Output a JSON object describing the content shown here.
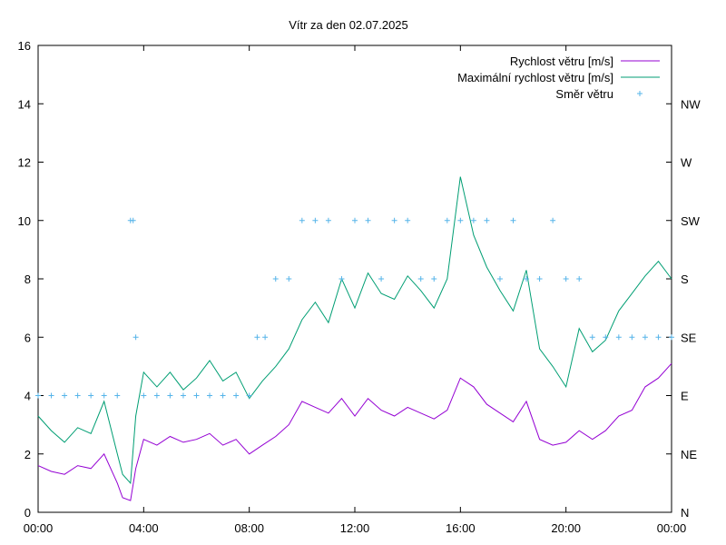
{
  "chart_data": {
    "type": "line",
    "title": "Vítr za den 02.07.2025",
    "xlabel": "",
    "ylabel": "",
    "xlim": [
      0,
      24
    ],
    "ylim": [
      0,
      16
    ],
    "x_ticks": [
      0,
      4,
      8,
      12,
      16,
      20,
      24
    ],
    "x_tick_labels": [
      "00:00",
      "04:00",
      "08:00",
      "12:00",
      "16:00",
      "20:00",
      "00:00"
    ],
    "y_ticks": [
      0,
      2,
      4,
      6,
      8,
      10,
      12,
      14,
      16
    ],
    "y_tick_labels": [
      "0",
      "2",
      "4",
      "6",
      "8",
      "10",
      "12",
      "14",
      "16"
    ],
    "y2_ticks": [
      0,
      2,
      4,
      6,
      8,
      10,
      12,
      14
    ],
    "y2_tick_labels": [
      "N",
      "NE",
      "E",
      "SE",
      "S",
      "SW",
      "W",
      "NW"
    ],
    "legend_position": "top-right",
    "grid": false,
    "series": [
      {
        "name": "Rychlost větru [m/s]",
        "color": "#9400d3",
        "kind": "line",
        "x": [
          0,
          0.5,
          1,
          1.5,
          2,
          2.5,
          3,
          3.2,
          3.5,
          3.7,
          4,
          4.5,
          5,
          5.5,
          6,
          6.5,
          7,
          7.5,
          8,
          8.5,
          9,
          9.5,
          10,
          10.5,
          11,
          11.5,
          12,
          12.5,
          13,
          13.5,
          14,
          14.5,
          15,
          15.5,
          16,
          16.5,
          17,
          17.5,
          18,
          18.5,
          19,
          19.5,
          20,
          20.5,
          21,
          21.5,
          22,
          22.5,
          23,
          23.5,
          24
        ],
        "y": [
          1.6,
          1.4,
          1.3,
          1.6,
          1.5,
          2.0,
          1.0,
          0.5,
          0.4,
          1.5,
          2.5,
          2.3,
          2.6,
          2.4,
          2.5,
          2.7,
          2.3,
          2.5,
          2.0,
          2.3,
          2.6,
          3.0,
          3.8,
          3.6,
          3.4,
          3.9,
          3.3,
          3.9,
          3.5,
          3.3,
          3.6,
          3.4,
          3.2,
          3.5,
          4.6,
          4.3,
          3.7,
          3.4,
          3.1,
          3.8,
          2.5,
          2.3,
          2.4,
          2.8,
          2.5,
          2.8,
          3.3,
          3.5,
          4.3,
          4.6,
          5.1
        ]
      },
      {
        "name": "Maximální rychlost větru [m/s]",
        "color": "#009e73",
        "kind": "line",
        "x": [
          0,
          0.5,
          1,
          1.5,
          2,
          2.5,
          3,
          3.2,
          3.5,
          3.7,
          4,
          4.5,
          5,
          5.5,
          6,
          6.5,
          7,
          7.5,
          8,
          8.5,
          9,
          9.5,
          10,
          10.5,
          11,
          11.5,
          12,
          12.5,
          13,
          13.5,
          14,
          14.5,
          15,
          15.5,
          16,
          16.5,
          17,
          17.5,
          18,
          18.5,
          19,
          19.5,
          20,
          20.5,
          21,
          21.5,
          22,
          22.5,
          23,
          23.5,
          24
        ],
        "y": [
          3.3,
          2.8,
          2.4,
          2.9,
          2.7,
          3.8,
          2.0,
          1.3,
          1.0,
          3.3,
          4.8,
          4.3,
          4.8,
          4.2,
          4.6,
          5.2,
          4.5,
          4.8,
          3.9,
          4.5,
          5.0,
          5.6,
          6.6,
          7.2,
          6.5,
          8.0,
          7.0,
          8.2,
          7.5,
          7.3,
          8.1,
          7.6,
          7.0,
          8.0,
          11.5,
          9.5,
          8.4,
          7.6,
          6.9,
          8.3,
          5.6,
          5.0,
          4.3,
          6.3,
          5.5,
          5.9,
          6.9,
          7.5,
          8.1,
          8.6,
          8.0
        ]
      },
      {
        "name": "Směr větru",
        "color": "#56b4e9",
        "kind": "points",
        "x": [
          0,
          0.5,
          1,
          1.5,
          2,
          2.5,
          3,
          3.5,
          3.6,
          3.7,
          4,
          4.5,
          5,
          5.5,
          6,
          6.5,
          7,
          7.5,
          8,
          8.3,
          8.6,
          9,
          9.5,
          10,
          10.5,
          11,
          11.5,
          12,
          12.5,
          13,
          13.5,
          14,
          14.5,
          15,
          15.5,
          16,
          16.5,
          17,
          17.5,
          18,
          18.5,
          19,
          19.5,
          20,
          20.5,
          21,
          21.5,
          22,
          22.5,
          23,
          23.5,
          24
        ],
        "y": [
          4,
          4,
          4,
          4,
          4,
          4,
          4,
          10,
          10,
          6,
          4,
          4,
          4,
          4,
          4,
          4,
          4,
          4,
          4,
          6,
          6,
          8,
          8,
          10,
          10,
          10,
          8,
          10,
          10,
          8,
          10,
          10,
          8,
          8,
          10,
          10,
          10,
          10,
          8,
          10,
          8,
          8,
          10,
          8,
          8,
          6,
          6,
          6,
          6,
          6,
          6,
          6
        ]
      }
    ]
  }
}
